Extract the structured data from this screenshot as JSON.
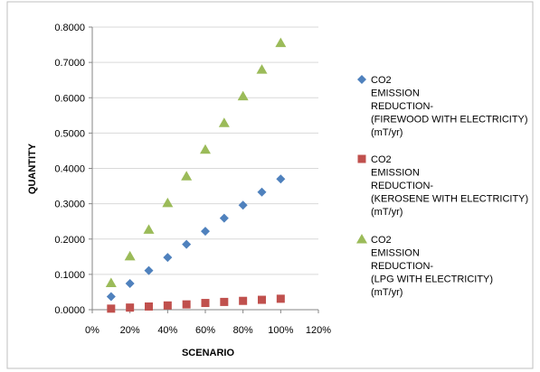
{
  "chart_data": {
    "type": "scatter",
    "title": "",
    "xlabel": "SCENARIO",
    "ylabel": "QUANTITY",
    "xlim": [
      0,
      120
    ],
    "ylim": [
      0,
      0.8
    ],
    "x_ticks": [
      "0%",
      "20%",
      "40%",
      "60%",
      "80%",
      "100%",
      "120%"
    ],
    "y_ticks": [
      "0.0000",
      "0.1000",
      "0.2000",
      "0.3000",
      "0.4000",
      "0.5000",
      "0.6000",
      "0.7000",
      "0.8000"
    ],
    "grid": "horizontal",
    "legend_position": "right",
    "series": [
      {
        "name_lines": [
          "CO2",
          "EMISSION",
          "REDUCTION-",
          "(FIREWOOD WITH ELECTRICITY)",
          "(mT/yr)"
        ],
        "marker": "diamond",
        "color": "#4f81bd",
        "x": [
          10,
          20,
          30,
          40,
          50,
          60,
          70,
          80,
          90,
          100
        ],
        "y": [
          0.037,
          0.074,
          0.111,
          0.148,
          0.185,
          0.222,
          0.259,
          0.296,
          0.333,
          0.37
        ]
      },
      {
        "name_lines": [
          "CO2",
          "EMISSION",
          "REDUCTION-",
          "(KEROSENE WITH ELECTRICITY)",
          "(mT/yr)"
        ],
        "marker": "square",
        "color": "#c0504d",
        "x": [
          10,
          20,
          30,
          40,
          50,
          60,
          70,
          80,
          90,
          100
        ],
        "y": [
          0.003,
          0.006,
          0.009,
          0.012,
          0.015,
          0.019,
          0.022,
          0.025,
          0.028,
          0.031
        ]
      },
      {
        "name_lines": [
          "CO2",
          "EMISSION",
          "REDUCTION-",
          "(LPG WITH ELECTRICITY)",
          "(mT/yr)"
        ],
        "marker": "triangle",
        "color": "#9bbb59",
        "x": [
          10,
          20,
          30,
          40,
          50,
          60,
          70,
          80,
          90,
          100
        ],
        "y": [
          0.0755,
          0.151,
          0.2265,
          0.302,
          0.3775,
          0.453,
          0.5285,
          0.604,
          0.6795,
          0.755
        ]
      }
    ]
  }
}
